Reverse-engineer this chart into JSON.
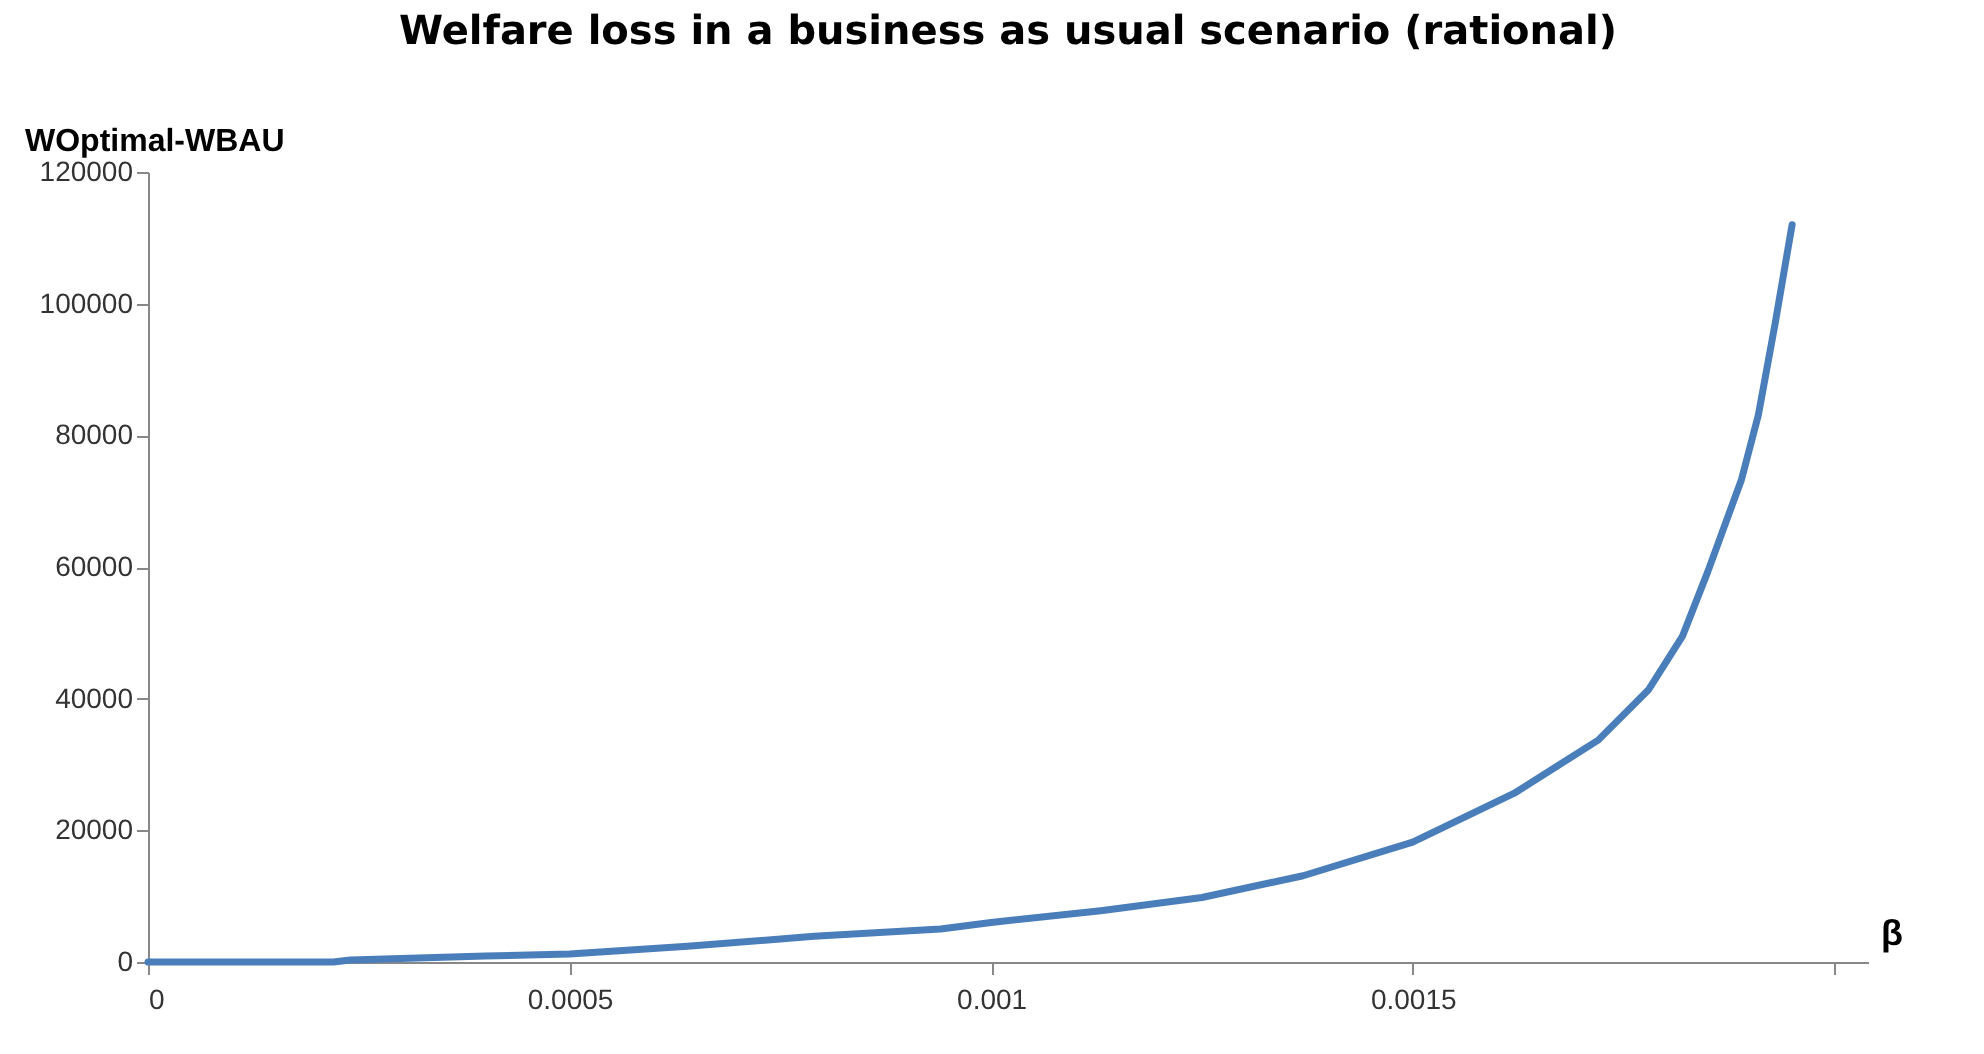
{
  "chart_data": {
    "type": "line",
    "title": "Welfare loss in a business as usual scenario (rational)",
    "xlabel": "β",
    "ylabel": "WOptimal-WBAU",
    "x": [
      0,
      0.0001,
      0.00022,
      0.00024,
      0.0004,
      0.0005,
      0.00064,
      0.00079,
      0.00094,
      0.001,
      0.00113,
      0.00125,
      0.00137,
      0.0015,
      0.00162,
      0.00172,
      0.00178,
      0.00182,
      0.00185,
      0.00189,
      0.00191,
      0.00193,
      0.00195
    ],
    "series": [
      {
        "color": "#4a7ebb",
        "values": [
          0,
          0,
          0,
          300,
          900,
          1200,
          2400,
          3900,
          5000,
          6000,
          7800,
          9800,
          13100,
          18200,
          25600,
          33700,
          41400,
          49500,
          59300,
          73300,
          83100,
          97100,
          112000
        ]
      }
    ],
    "xlim": [
      0,
      0.00204
    ],
    "xticks": [
      0,
      0.0005,
      0.001,
      0.0015,
      {
        "value": 0.002,
        "label": null
      }
    ],
    "ylim": [
      0,
      120000
    ],
    "yticks": [
      0,
      20000,
      40000,
      60000,
      80000,
      100000,
      120000
    ],
    "grid": false,
    "marker": "none",
    "line_style": "solid"
  }
}
